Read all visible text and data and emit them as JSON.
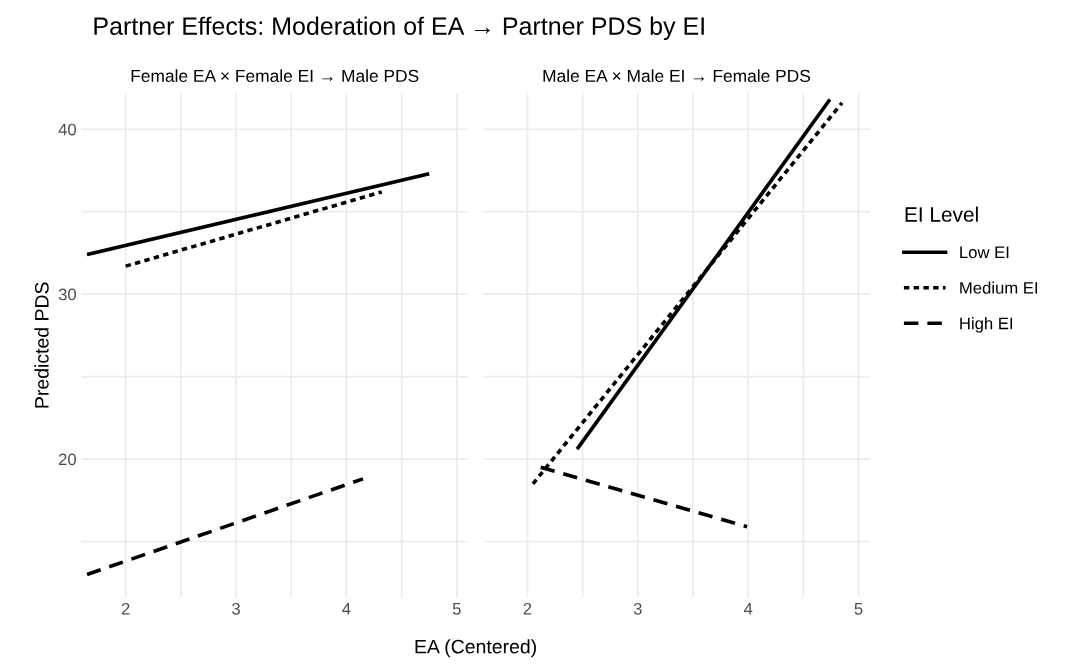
{
  "chart_data": [
    {
      "type": "line",
      "title": "Partner Effects: Moderation of EA → Partner PDS by EI",
      "subtitle": "Female EA × Female EI → Male PDS",
      "xlabel": "EA (Centered)",
      "ylabel": "Predicted PDS",
      "xlim": [
        1.6,
        5.1
      ],
      "ylim": [
        11.6,
        42.2
      ],
      "xticks": [
        2,
        {
          "value": 2.5,
          "label": null
        },
        3,
        {
          "value": 3.5,
          "label": null
        },
        4,
        {
          "value": 4.5,
          "label": null
        },
        5
      ],
      "yticks": [
        {
          "value": 15,
          "label": null
        },
        20,
        {
          "value": 25,
          "label": null
        },
        30,
        {
          "value": 35,
          "label": null
        },
        40
      ],
      "grid": true,
      "series": [
        {
          "color": "#000000",
          "line_style": "solid",
          "x": [
            1.65,
            4.75
          ],
          "values": [
            32.4,
            37.3
          ]
        },
        {
          "color": "#000000",
          "line_style": "dotted",
          "x": [
            2.0,
            4.32
          ],
          "values": [
            31.7,
            36.2
          ]
        },
        {
          "color": "#000000",
          "line_style": "dashed",
          "x": [
            1.65,
            4.15
          ],
          "values": [
            13.0,
            18.8
          ]
        }
      ]
    },
    {
      "type": "line",
      "subtitle": "Male EA × Male EI → Female PDS",
      "legend_title": "EI Level",
      "legend": "right",
      "xlim": [
        1.6,
        5.1
      ],
      "ylim": [
        11.6,
        42.2
      ],
      "tick_labels": "x",
      "xticks": [
        2,
        {
          "value": 2.5,
          "label": null
        },
        3,
        {
          "value": 3.5,
          "label": null
        },
        4,
        {
          "value": 4.5,
          "label": null
        },
        5
      ],
      "yticks": [
        {
          "value": 15,
          "label": null
        },
        20,
        {
          "value": 25,
          "label": null
        },
        30,
        {
          "value": 35,
          "label": null
        },
        40
      ],
      "grid": true,
      "series": [
        {
          "name": "Low EI",
          "color": "#000000",
          "line_style": "solid",
          "x": [
            2.45,
            4.74
          ],
          "values": [
            20.6,
            41.8
          ]
        },
        {
          "name": "Medium EI",
          "color": "#000000",
          "line_style": "dotted",
          "x": [
            2.05,
            4.85
          ],
          "values": [
            18.5,
            41.6
          ]
        },
        {
          "name": "High EI",
          "color": "#000000",
          "line_style": "dashed",
          "x": [
            2.12,
            3.99
          ],
          "values": [
            19.5,
            15.9
          ]
        }
      ]
    }
  ]
}
